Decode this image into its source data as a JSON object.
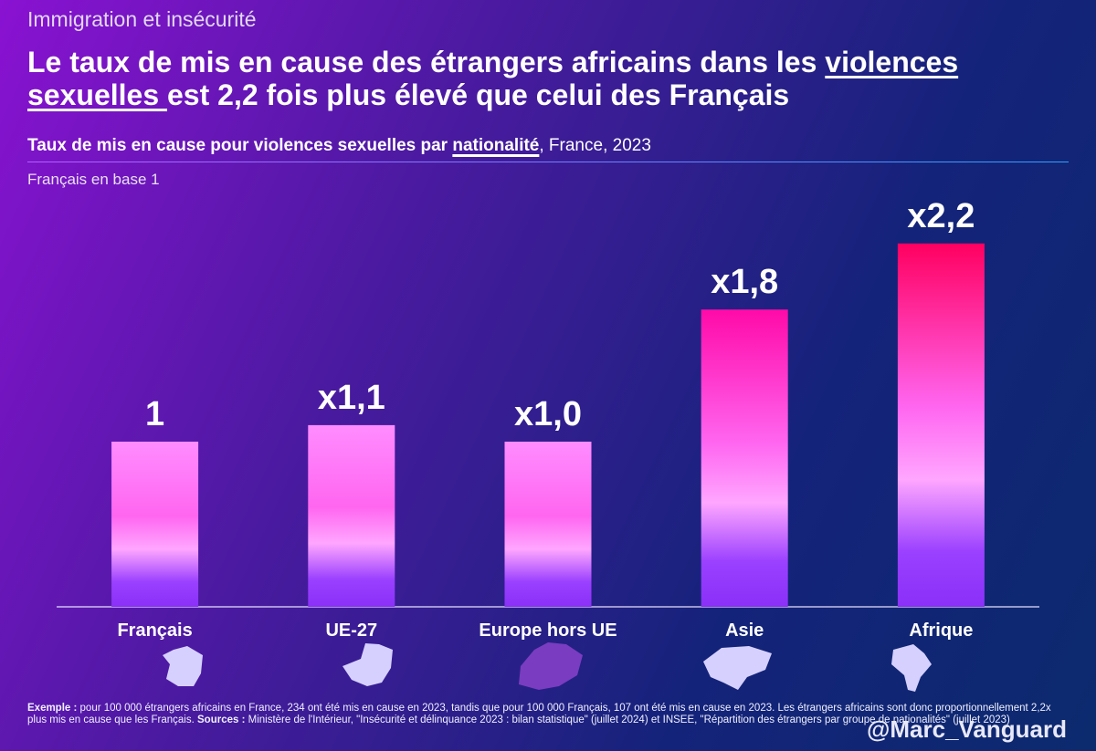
{
  "chart_data": {
    "type": "bar",
    "supertitle": "Immigration et insécurité",
    "title_parts": [
      "Le taux de mis en cause des étrangers africains dans les ",
      "violences sexuelles ",
      "est 2,2 fois plus élevé que celui des Français"
    ],
    "subtitle_parts": [
      "Taux de mis en cause pour violences sexuelles par ",
      "nationalité",
      ", France, 2023"
    ],
    "note": "Français en base 1",
    "categories": [
      "Français",
      "UE-27",
      "Europe hors UE",
      "Asie",
      "Afrique"
    ],
    "values": [
      1,
      1.1,
      1.0,
      1.8,
      2.2
    ],
    "value_labels": [
      "1",
      "x1,1",
      "x1,0",
      "x1,8",
      "x2,2"
    ],
    "colors": [
      "#ff8cff",
      "#ff8cff",
      "#ff8cff",
      "#ff0aa8",
      "#ff0060"
    ],
    "footnote_parts": [
      "Exemple :",
      " pour 100 000 étrangers africains en France, 234 ont été mis en cause en 2023, tandis que pour 100 000 Français, 107 ont été mis en cause en 2023. Les étrangers africains sont donc proportionnellement 2,2x plus mis en cause que les Français. ",
      "Sources :",
      " Ministère de l'Intérieur, \"Insécurité et délinquance 2023 : bilan statistique\" (juillet 2024) et INSEE, \"Répartition des étrangers par groupe de nationalités\" (juillet 2023)"
    ],
    "handle": "@Marc_Vanguard"
  }
}
